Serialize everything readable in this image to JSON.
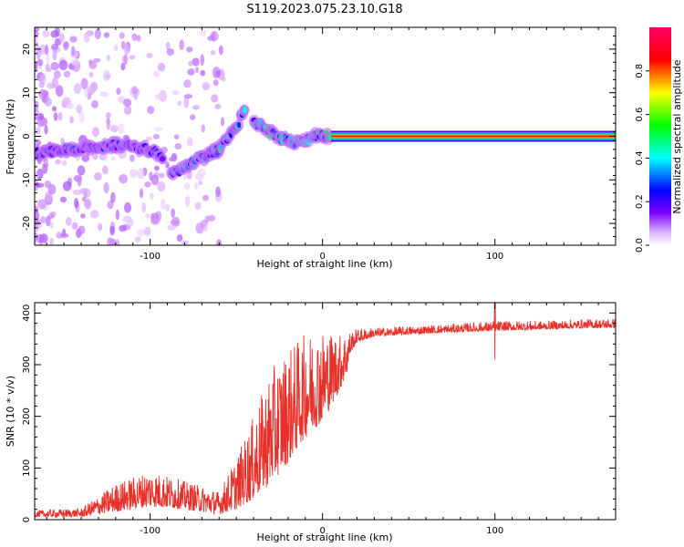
{
  "title": "S119.2023.075.23.10.G18",
  "chart_data": [
    {
      "type": "heatmap",
      "xlabel": "Height of straight line (km)",
      "ylabel": "Frequency (Hz)",
      "xlim": [
        -167,
        170
      ],
      "ylim": [
        -25,
        25
      ],
      "x_ticks": [
        -100,
        0,
        100
      ],
      "y_ticks": [
        -20,
        -10,
        0,
        10,
        20
      ],
      "colorbar": {
        "label": "Normalized spectral amplitude",
        "range": [
          0,
          1
        ],
        "ticks": [
          "0.0",
          "0.2",
          "0.4",
          "0.6",
          "0.8"
        ],
        "colors": [
          "#ffffff",
          "#cc88ff",
          "#7a00ff",
          "#0000ff",
          "#00ffff",
          "#00ff00",
          "#ffff00",
          "#ff0000",
          "#ff0066"
        ]
      },
      "ridges": [
        {
          "x": [
            -167,
            -150,
            -120,
            -100,
            -92
          ],
          "y": [
            -4,
            -3,
            -2,
            -3,
            -5
          ],
          "amplitude": 0.35
        },
        {
          "x": [
            -88,
            -75,
            -60,
            -50,
            -44
          ],
          "y": [
            -9,
            -6,
            -3,
            2,
            7
          ],
          "amplitude": 0.5
        },
        {
          "x": [
            -40,
            -32,
            -25,
            -15,
            -5,
            5
          ],
          "y": [
            3.5,
            1.5,
            -0.5,
            -1.5,
            0,
            0
          ],
          "amplitude": 0.55
        },
        {
          "x": [
            5,
            170
          ],
          "y": [
            0,
            0
          ],
          "amplitude": 0.95
        }
      ]
    },
    {
      "type": "line",
      "xlabel": "Height of straight line (km)",
      "ylabel": "SNR (10 * v/v)",
      "xlim": [
        -167,
        170
      ],
      "ylim": [
        0,
        420
      ],
      "x_ticks": [
        -100,
        0,
        100
      ],
      "y_ticks": [
        0,
        100,
        200,
        300,
        400
      ],
      "color": "#e8302a",
      "envelope": {
        "x": [
          -167,
          -140,
          -120,
          -100,
          -80,
          -60,
          -50,
          -40,
          -30,
          -20,
          -10,
          0,
          10,
          20,
          30,
          50,
          80,
          100,
          130,
          150,
          170
        ],
        "min": [
          5,
          5,
          15,
          25,
          20,
          10,
          20,
          40,
          70,
          110,
          160,
          190,
          250,
          330,
          345,
          350,
          355,
          355,
          360,
          362,
          362
        ],
        "max": [
          18,
          22,
          70,
          95,
          75,
          55,
          120,
          200,
          290,
          330,
          360,
          370,
          360,
          370,
          372,
          375,
          380,
          385,
          385,
          388,
          390
        ]
      },
      "spikes": [
        {
          "x": 100,
          "min": 310,
          "max": 425
        }
      ]
    }
  ]
}
